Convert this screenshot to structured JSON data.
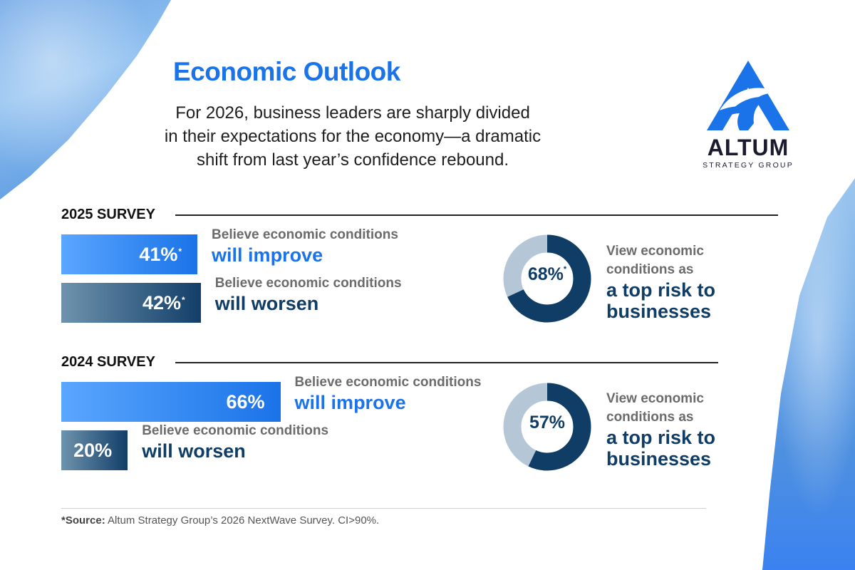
{
  "header": {
    "title": "Economic Outlook",
    "subtitle_lines": [
      "For 2026, business leaders are sharply divided",
      "in their expectations for the economy—a dramatic",
      "shift from last year’s confidence rebound."
    ]
  },
  "logo": {
    "wordmark": "ALTUM",
    "tagline": "STRATEGY GROUP",
    "registered": "®"
  },
  "colors": {
    "accent_blue": "#1a73e8",
    "navy": "#0f3d66",
    "donut_light": "#b5c7d6",
    "caption_gray": "#6b6b6b"
  },
  "chart_data": [
    {
      "type": "bar",
      "title": "2025 SURVEY",
      "categories": [
        "will improve",
        "will worsen"
      ],
      "values": [
        41,
        42
      ],
      "value_labels": [
        "41%",
        "42%"
      ],
      "footnote_marks": [
        "*",
        "*"
      ],
      "captions": [
        "Believe economic conditions",
        "Believe economic conditions"
      ],
      "xlim": [
        0,
        100
      ]
    },
    {
      "type": "pie",
      "title": "2025 SURVEY",
      "values": [
        68,
        32
      ],
      "value_label": "68%",
      "footnote_mark": "*",
      "caption_top": [
        "View economic",
        "conditions as"
      ],
      "caption_main": [
        "a top risk to",
        "businesses"
      ]
    },
    {
      "type": "bar",
      "title": "2024 SURVEY",
      "categories": [
        "will improve",
        "will worsen"
      ],
      "values": [
        66,
        20
      ],
      "value_labels": [
        "66%",
        "20%"
      ],
      "footnote_marks": [
        "",
        ""
      ],
      "captions": [
        "Believe economic conditions",
        "Believe economic conditions"
      ],
      "xlim": [
        0,
        100
      ]
    },
    {
      "type": "pie",
      "title": "2024 SURVEY",
      "values": [
        57,
        43
      ],
      "value_label": "57%",
      "footnote_mark": "",
      "caption_top": [
        "View economic",
        "conditions as"
      ],
      "caption_main": [
        "a top risk to",
        "businesses"
      ]
    }
  ],
  "footer": {
    "source_label": "*Source:",
    "source_text": " Altum Strategy Group’s 2026 NextWave Survey. CI>90%."
  }
}
